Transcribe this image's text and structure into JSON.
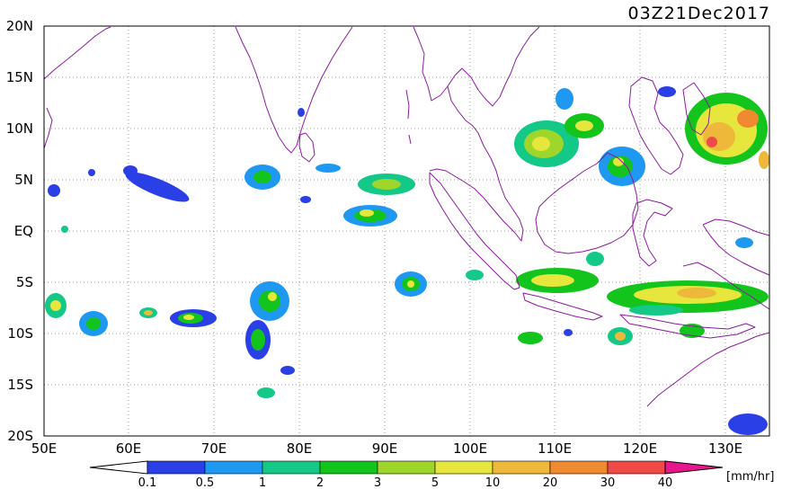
{
  "title": "03Z21Dec2017",
  "lat_labels": [
    "20N",
    "15N",
    "10N",
    "5N",
    "EQ",
    "5S",
    "10S",
    "15S",
    "20S"
  ],
  "lon_labels": [
    "50E",
    "60E",
    "70E",
    "80E",
    "90E",
    "100E",
    "110E",
    "120E",
    "130E"
  ],
  "colorbar": {
    "unit": "[mm/hr]",
    "ticks": [
      "0.1",
      "0.5",
      "1",
      "2",
      "3",
      "5",
      "10",
      "20",
      "30",
      "40"
    ],
    "colors": [
      "#ffffff",
      "#2b3fe6",
      "#1e98f0",
      "#14c887",
      "#12c41c",
      "#9fd62b",
      "#e6e63c",
      "#eeb83a",
      "#f08a30",
      "#f04a48",
      "#e8168c"
    ]
  },
  "colors": {
    "coastline": "#8b1a9e",
    "gridline": "#9a9a9a"
  }
}
